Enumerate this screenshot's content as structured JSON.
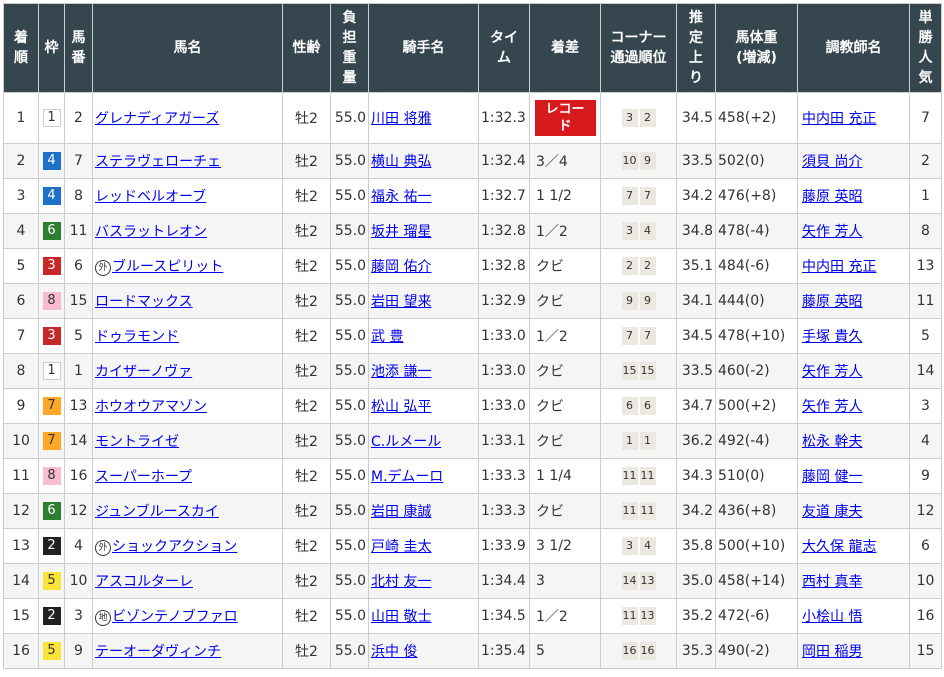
{
  "headers": [
    "着順",
    "枠",
    "馬番",
    "馬名",
    "性齢",
    "負担重量",
    "騎手名",
    "タイム",
    "着差",
    "コーナー通過順位",
    "推定上り",
    "馬体重(増減)",
    "調教師名",
    "単勝人気"
  ],
  "header_lines": [
    [
      "着",
      "順"
    ],
    [
      "枠"
    ],
    [
      "馬",
      "番"
    ],
    [
      "馬名"
    ],
    [
      "性齢"
    ],
    [
      "負",
      "担",
      "重",
      "量"
    ],
    [
      "騎手名"
    ],
    [
      "タイ",
      "ム"
    ],
    [
      "着差"
    ],
    [
      "コーナー",
      "通過順位"
    ],
    [
      "推",
      "定",
      "上",
      "り"
    ],
    [
      "馬体重",
      "(増減)"
    ],
    [
      "調教師名"
    ],
    [
      "単",
      "勝",
      "人",
      "気"
    ]
  ],
  "waku_colors": {
    "1": {
      "bg": "#ffffff",
      "fg": "#333333",
      "border": "#cccccc"
    },
    "2": {
      "bg": "#222222",
      "fg": "#ffffff"
    },
    "3": {
      "bg": "#c62828",
      "fg": "#ffffff"
    },
    "4": {
      "bg": "#1e6fc8",
      "fg": "#ffffff"
    },
    "5": {
      "bg": "#fbe43a",
      "fg": "#333333"
    },
    "6": {
      "bg": "#2e7d32",
      "fg": "#ffffff"
    },
    "7": {
      "bg": "#ffa726",
      "fg": "#333333"
    },
    "8": {
      "bg": "#f8bbd0",
      "fg": "#333333"
    }
  },
  "colors": {
    "header_bg": "#36464f",
    "link": "#0000ee",
    "record_bg": "#d7191c",
    "corner_bg": "#ebe9df",
    "row_alt": "#f5f5f5"
  },
  "rows": [
    {
      "rank": "1",
      "waku": "1",
      "num": "2",
      "mark": "",
      "horse": "グレナディアガーズ",
      "sexage": "牡2",
      "weight": "55.0",
      "jockey": "川田 将雅",
      "time": "1:32.3",
      "margin": "レコード",
      "record": true,
      "corner": [
        "3",
        "2"
      ],
      "last3f": "34.5",
      "body": "458",
      "diff": "(+2)",
      "trainer": "中内田 充正",
      "pop": "7"
    },
    {
      "rank": "2",
      "waku": "4",
      "num": "7",
      "mark": "",
      "horse": "ステラヴェローチェ",
      "sexage": "牡2",
      "weight": "55.0",
      "jockey": "横山 典弘",
      "time": "1:32.4",
      "margin": "3／4",
      "corner": [
        "10",
        "9"
      ],
      "last3f": "33.5",
      "body": "502",
      "diff": "(0)",
      "trainer": "須貝 尚介",
      "pop": "2"
    },
    {
      "rank": "3",
      "waku": "4",
      "num": "8",
      "mark": "",
      "horse": "レッドベルオーブ",
      "sexage": "牡2",
      "weight": "55.0",
      "jockey": "福永 祐一",
      "time": "1:32.7",
      "margin": "1 1/2",
      "corner": [
        "7",
        "7"
      ],
      "last3f": "34.2",
      "body": "476",
      "diff": "(+8)",
      "trainer": "藤原 英昭",
      "pop": "1"
    },
    {
      "rank": "4",
      "waku": "6",
      "num": "11",
      "mark": "",
      "horse": "バスラットレオン",
      "sexage": "牡2",
      "weight": "55.0",
      "jockey": "坂井 瑠星",
      "time": "1:32.8",
      "margin": "1／2",
      "corner": [
        "3",
        "4"
      ],
      "last3f": "34.8",
      "body": "478",
      "diff": "(-4)",
      "trainer": "矢作 芳人",
      "pop": "8"
    },
    {
      "rank": "5",
      "waku": "3",
      "num": "6",
      "mark": "外",
      "horse": "ブルースピリット",
      "sexage": "牡2",
      "weight": "55.0",
      "jockey": "藤岡 佑介",
      "time": "1:32.8",
      "margin": "クビ",
      "corner": [
        "2",
        "2"
      ],
      "last3f": "35.1",
      "body": "484",
      "diff": "(-6)",
      "trainer": "中内田 充正",
      "pop": "13"
    },
    {
      "rank": "6",
      "waku": "8",
      "num": "15",
      "mark": "",
      "horse": "ロードマックス",
      "sexage": "牡2",
      "weight": "55.0",
      "jockey": "岩田 望来",
      "time": "1:32.9",
      "margin": "クビ",
      "corner": [
        "9",
        "9"
      ],
      "last3f": "34.1",
      "body": "444",
      "diff": "(0)",
      "trainer": "藤原 英昭",
      "pop": "11"
    },
    {
      "rank": "7",
      "waku": "3",
      "num": "5",
      "mark": "",
      "horse": "ドゥラモンド",
      "sexage": "牡2",
      "weight": "55.0",
      "jockey": "武 豊",
      "time": "1:33.0",
      "margin": "1／2",
      "corner": [
        "7",
        "7"
      ],
      "last3f": "34.5",
      "body": "478",
      "diff": "(+10)",
      "trainer": "手塚 貴久",
      "pop": "5"
    },
    {
      "rank": "8",
      "waku": "1",
      "num": "1",
      "mark": "",
      "horse": "カイザーノヴァ",
      "sexage": "牡2",
      "weight": "55.0",
      "jockey": "池添 謙一",
      "time": "1:33.0",
      "margin": "クビ",
      "corner": [
        "15",
        "15"
      ],
      "last3f": "33.5",
      "body": "460",
      "diff": "(-2)",
      "trainer": "矢作 芳人",
      "pop": "14"
    },
    {
      "rank": "9",
      "waku": "7",
      "num": "13",
      "mark": "",
      "horse": "ホウオウアマゾン",
      "sexage": "牡2",
      "weight": "55.0",
      "jockey": "松山 弘平",
      "time": "1:33.0",
      "margin": "クビ",
      "corner": [
        "6",
        "6"
      ],
      "last3f": "34.7",
      "body": "500",
      "diff": "(+2)",
      "trainer": "矢作 芳人",
      "pop": "3"
    },
    {
      "rank": "10",
      "waku": "7",
      "num": "14",
      "mark": "",
      "horse": "モントライゼ",
      "sexage": "牡2",
      "weight": "55.0",
      "jockey": "C.ルメール",
      "time": "1:33.1",
      "margin": "クビ",
      "corner": [
        "1",
        "1"
      ],
      "last3f": "36.2",
      "body": "492",
      "diff": "(-4)",
      "trainer": "松永 幹夫",
      "pop": "4"
    },
    {
      "rank": "11",
      "waku": "8",
      "num": "16",
      "mark": "",
      "horse": "スーパーホープ",
      "sexage": "牡2",
      "weight": "55.0",
      "jockey": "M.デムーロ",
      "time": "1:33.3",
      "margin": "1 1/4",
      "corner": [
        "11",
        "11"
      ],
      "last3f": "34.3",
      "body": "510",
      "diff": "(0)",
      "trainer": "藤岡 健一",
      "pop": "9"
    },
    {
      "rank": "12",
      "waku": "6",
      "num": "12",
      "mark": "",
      "horse": "ジュンブルースカイ",
      "sexage": "牡2",
      "weight": "55.0",
      "jockey": "岩田 康誠",
      "time": "1:33.3",
      "margin": "クビ",
      "corner": [
        "11",
        "11"
      ],
      "last3f": "34.2",
      "body": "436",
      "diff": "(+8)",
      "trainer": "友道 康夫",
      "pop": "12"
    },
    {
      "rank": "13",
      "waku": "2",
      "num": "4",
      "mark": "外",
      "horse": "ショックアクション",
      "sexage": "牡2",
      "weight": "55.0",
      "jockey": "戸崎 圭太",
      "time": "1:33.9",
      "margin": "3 1/2",
      "corner": [
        "3",
        "4"
      ],
      "last3f": "35.8",
      "body": "500",
      "diff": "(+10)",
      "trainer": "大久保 龍志",
      "pop": "6"
    },
    {
      "rank": "14",
      "waku": "5",
      "num": "10",
      "mark": "",
      "horse": "アスコルターレ",
      "sexage": "牡2",
      "weight": "55.0",
      "jockey": "北村 友一",
      "time": "1:34.4",
      "margin": "3",
      "corner": [
        "14",
        "13"
      ],
      "last3f": "35.0",
      "body": "458",
      "diff": "(+14)",
      "trainer": "西村 真幸",
      "pop": "10"
    },
    {
      "rank": "15",
      "waku": "2",
      "num": "3",
      "mark": "地",
      "horse": "ビゾンテノブファロ",
      "sexage": "牡2",
      "weight": "55.0",
      "jockey": "山田 敬士",
      "time": "1:34.5",
      "margin": "1／2",
      "corner": [
        "11",
        "13"
      ],
      "last3f": "35.2",
      "body": "472",
      "diff": "(-6)",
      "trainer": "小桧山 悟",
      "pop": "16"
    },
    {
      "rank": "16",
      "waku": "5",
      "num": "9",
      "mark": "",
      "horse": "テーオーダヴィンチ",
      "sexage": "牡2",
      "weight": "55.0",
      "jockey": "浜中 俊",
      "time": "1:35.4",
      "margin": "5",
      "corner": [
        "16",
        "16"
      ],
      "last3f": "35.3",
      "body": "490",
      "diff": "(-2)",
      "trainer": "岡田 稲男",
      "pop": "15"
    }
  ]
}
